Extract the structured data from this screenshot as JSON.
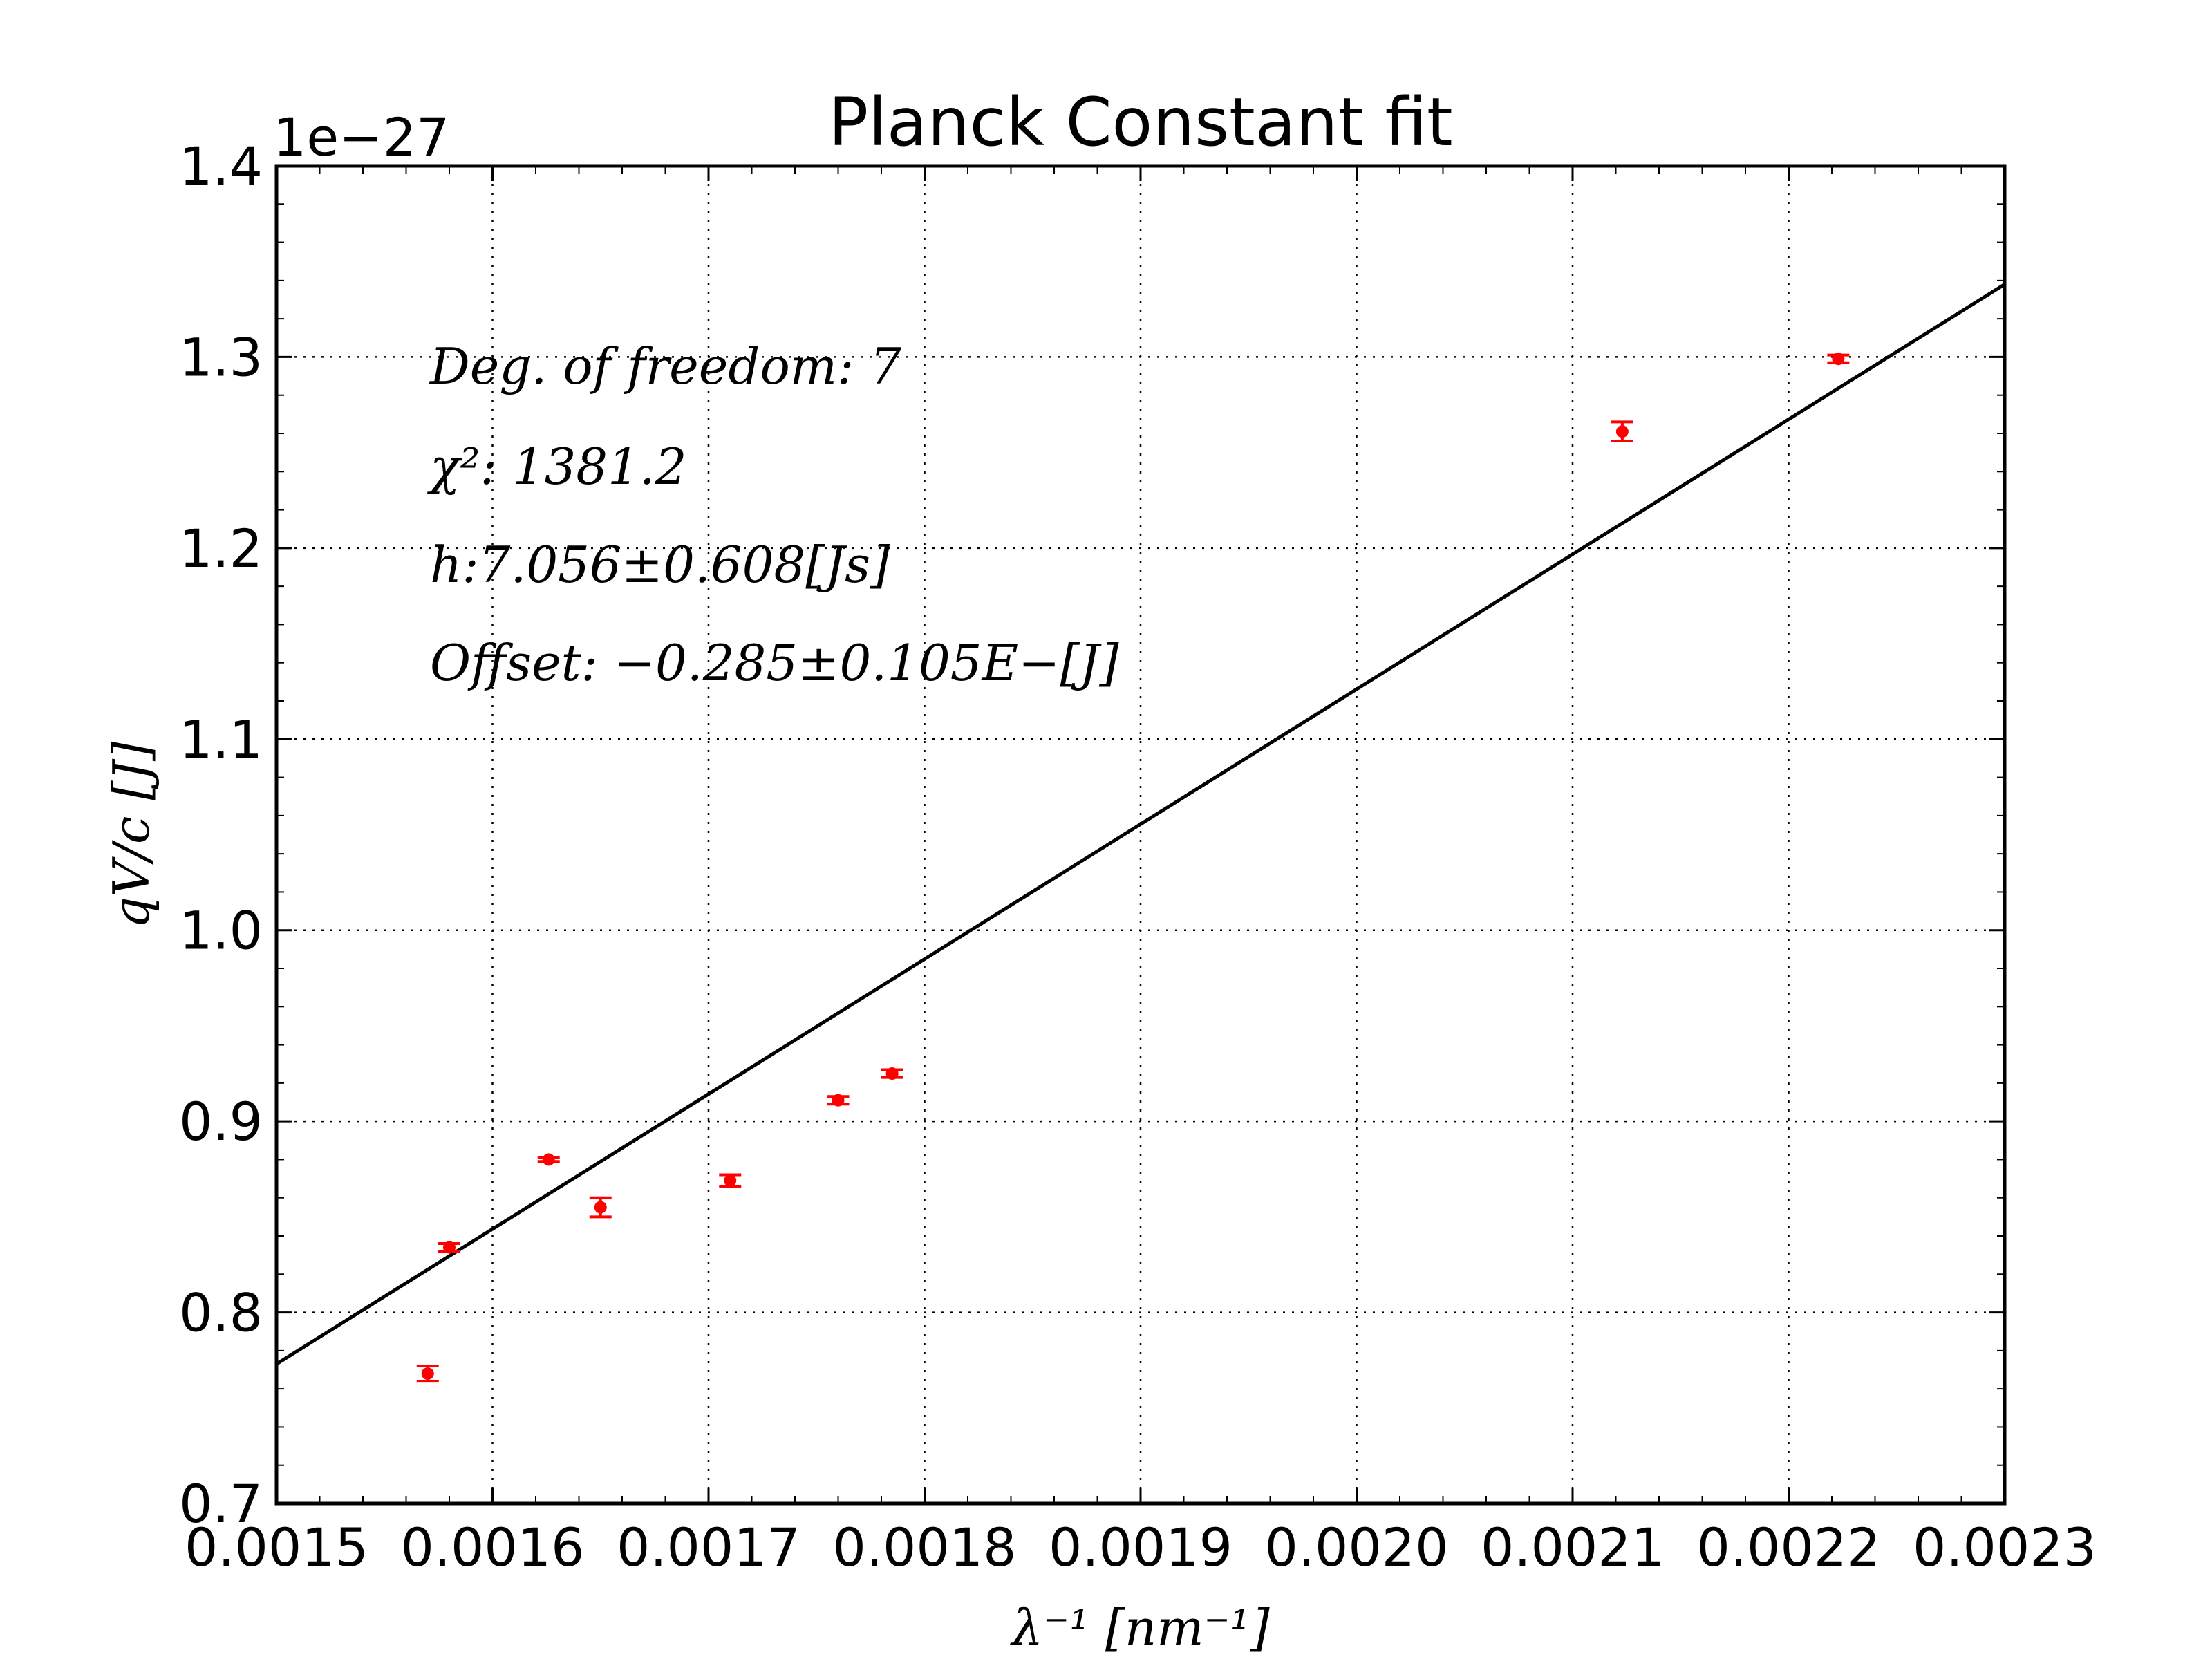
{
  "chart_data": {
    "type": "scatter",
    "title": "Planck Constant fit",
    "xlabel": "λ⁻¹ [nm⁻¹]",
    "ylabel": "qV/c [J]",
    "y_offset_label": "1e−27",
    "xlim": [
      0.0015,
      0.0023
    ],
    "ylim": [
      0.7,
      1.4
    ],
    "x_ticks": [
      0.0015,
      0.0016,
      0.0017,
      0.0018,
      0.0019,
      0.002,
      0.0021,
      0.0022,
      0.0023
    ],
    "x_tick_labels": [
      "0.0015",
      "0.0016",
      "0.0017",
      "0.0018",
      "0.0019",
      "0.0020",
      "0.0021",
      "0.0022",
      "0.0023"
    ],
    "y_ticks": [
      0.7,
      0.8,
      0.9,
      1.0,
      1.1,
      1.2,
      1.3,
      1.4
    ],
    "y_tick_labels": [
      "0.7",
      "0.8",
      "0.9",
      "1.0",
      "1.1",
      "1.2",
      "1.3",
      "1.4"
    ],
    "grid": true,
    "series": [
      {
        "kind": "errorbar",
        "color": "#ff0000",
        "points": [
          {
            "x": 0.00157,
            "y": 0.768,
            "yerr": 0.004
          },
          {
            "x": 0.00158,
            "y": 0.834,
            "yerr": 0.002
          },
          {
            "x": 0.001626,
            "y": 0.88,
            "yerr": 0.001
          },
          {
            "x": 0.00165,
            "y": 0.855,
            "yerr": 0.005
          },
          {
            "x": 0.00171,
            "y": 0.869,
            "yerr": 0.003
          },
          {
            "x": 0.00176,
            "y": 0.911,
            "yerr": 0.002
          },
          {
            "x": 0.001785,
            "y": 0.925,
            "yerr": 0.002
          },
          {
            "x": 0.002123,
            "y": 1.261,
            "yerr": 0.005
          },
          {
            "x": 0.002223,
            "y": 1.299,
            "yerr": 0.002
          }
        ]
      },
      {
        "kind": "fit_line",
        "color": "#000000",
        "x": [
          0.0015,
          0.0023
        ],
        "y": [
          0.773,
          1.338
        ]
      }
    ],
    "annotations": [
      "Deg. of freedom: 7",
      "χ²: 1381.2",
      "h:7.056±0.608[Js]",
      "Offset: −0.285±0.105E−[J]"
    ]
  }
}
